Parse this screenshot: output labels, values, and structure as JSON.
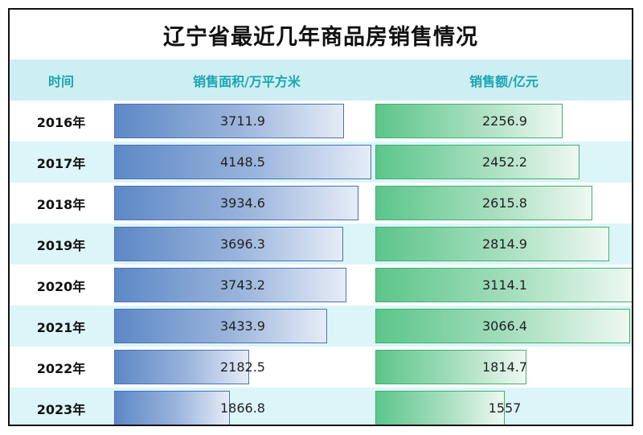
{
  "chart_data": {
    "type": "table",
    "title": "辽宁省最近几年商品房销售情况",
    "headers": [
      "时间",
      "销售面积/万平方米",
      "销售额/亿元"
    ],
    "categories": [
      "2016年",
      "2017年",
      "2018年",
      "2019年",
      "2020年",
      "2021年",
      "2022年",
      "2023年"
    ],
    "series": [
      {
        "name": "销售面积/万平方米",
        "values": [
          3711.9,
          4148.5,
          3934.6,
          3696.3,
          3743.2,
          3433.9,
          2182.5,
          1866.8
        ]
      },
      {
        "name": "销售额/亿元",
        "values": [
          2256.9,
          2452.2,
          2615.8,
          2814.9,
          3114.1,
          3066.4,
          1814.7,
          1557
        ]
      }
    ],
    "colors": {
      "area": "#5d88c6",
      "sales": "#5cc58a",
      "header_bg": "#cdeef2",
      "header_text": "#1aa5b2",
      "alt_row": "#dcf5f8"
    }
  }
}
